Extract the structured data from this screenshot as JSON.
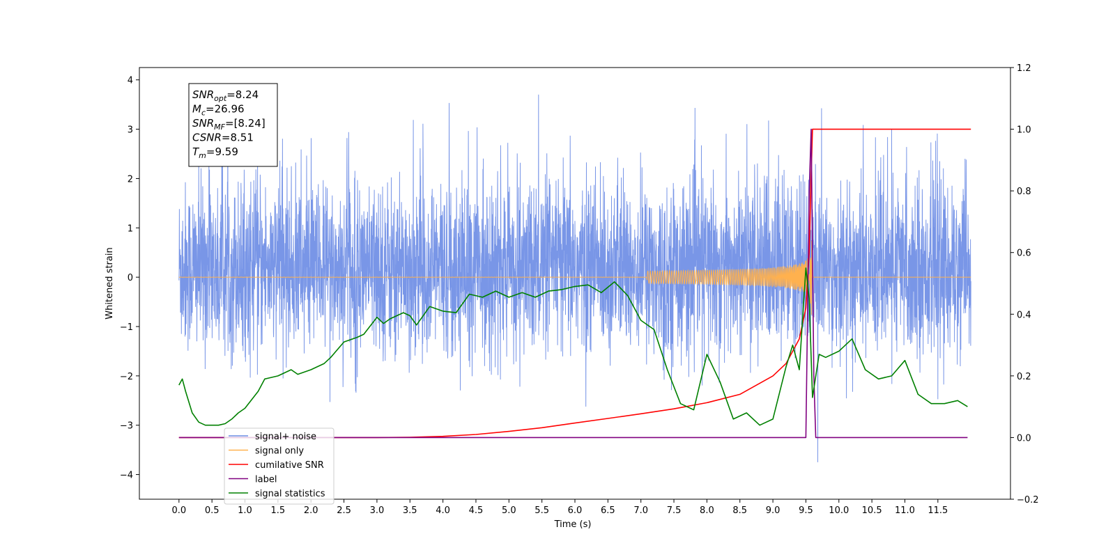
{
  "chart_data": {
    "type": "line",
    "xlabel": "Time (s)",
    "ylabel": "Whitened strain",
    "xlim": [
      -0.6,
      12.6
    ],
    "ylim": [
      -4.5,
      4.25
    ],
    "y2lim": [
      -0.2,
      1.2
    ],
    "xticks": [
      0.0,
      0.5,
      1.0,
      1.5,
      2.0,
      2.5,
      3.0,
      3.5,
      4.0,
      4.5,
      5.0,
      5.5,
      6.0,
      6.5,
      7.0,
      7.5,
      8.0,
      8.5,
      9.0,
      9.5,
      10.0,
      10.5,
      11.0,
      11.5
    ],
    "xtick_labels": [
      "0.0",
      "0.5",
      "1.0",
      "1.5",
      "2.0",
      "2.5",
      "3.0",
      "3.5",
      "4.0",
      "4.5",
      "5.0",
      "5.5",
      "6.0",
      "6.5",
      "7.0",
      "7.5",
      "8.0",
      "8.5",
      "9.0",
      "9.5",
      "10.0",
      "10.5",
      "11.0",
      "11.5"
    ],
    "yticks": [
      -4,
      -3,
      -2,
      -1,
      0,
      1,
      2,
      3,
      4
    ],
    "ytick_labels": [
      "−4",
      "−3",
      "−2",
      "−1",
      "0",
      "1",
      "2",
      "3",
      "4"
    ],
    "y2ticks": [
      -0.2,
      0.0,
      0.2,
      0.4,
      0.6,
      0.8,
      1.0,
      1.2
    ],
    "y2tick_labels": [
      "−0.2",
      "0.0",
      "0.2",
      "0.4",
      "0.6",
      "0.8",
      "1.0",
      "1.2"
    ],
    "grid": false,
    "legend_position": "lower-left",
    "info_box": [
      {
        "base": "SNR",
        "sub": "opt",
        "value": "=8.24"
      },
      {
        "base": "M",
        "sub": "c",
        "value": "=26.96"
      },
      {
        "base": "SNR",
        "sub": "MF",
        "value": "=[8.24]"
      },
      {
        "base": "CSNR",
        "sub": "",
        "value": "=8.51"
      },
      {
        "base": "T",
        "sub": "m",
        "value": "=9.59"
      }
    ],
    "series": [
      {
        "name": "signal+ noise",
        "color": "#6a8be4",
        "axis": "left",
        "note": "noise band mostly within approx -1.5..+2.2, spikes up to 3.85 and down to -4.1",
        "x_range": [
          0.0,
          12.0
        ]
      },
      {
        "name": "signal only",
        "color": "#ffb14e",
        "axis": "left",
        "note": "chirp waveform, flat at 0 then growing oscillation near merger",
        "x_range": [
          0.0,
          12.0
        ],
        "merger_time": 9.59,
        "peak_amplitude": 0.9
      },
      {
        "name": "cumilative SNR",
        "color": "#ff0000",
        "axis": "right",
        "x": [
          0.0,
          3.0,
          3.5,
          4.0,
          4.5,
          5.0,
          5.5,
          6.0,
          6.5,
          7.0,
          7.5,
          8.0,
          8.5,
          9.0,
          9.2,
          9.4,
          9.5,
          9.55,
          9.58,
          9.6,
          12.0
        ],
        "y": [
          0.0,
          0.0,
          0.001,
          0.004,
          0.01,
          0.02,
          0.032,
          0.047,
          0.062,
          0.077,
          0.093,
          0.113,
          0.14,
          0.2,
          0.24,
          0.32,
          0.42,
          0.6,
          0.85,
          1.0,
          1.0
        ]
      },
      {
        "name": "label",
        "color": "#800080",
        "axis": "right",
        "x": [
          0.0,
          9.5,
          9.55,
          9.58,
          9.62,
          9.65,
          11.95
        ],
        "y": [
          0.0,
          0.0,
          0.8,
          1.0,
          0.2,
          0.0,
          0.0
        ]
      },
      {
        "name": "signal statistics",
        "color": "#008000",
        "axis": "right",
        "x": [
          0.0,
          0.05,
          0.1,
          0.2,
          0.3,
          0.4,
          0.5,
          0.6,
          0.7,
          0.8,
          0.9,
          1.0,
          1.2,
          1.3,
          1.5,
          1.7,
          1.8,
          2.0,
          2.2,
          2.3,
          2.5,
          2.7,
          2.8,
          3.0,
          3.1,
          3.2,
          3.4,
          3.5,
          3.6,
          3.8,
          4.0,
          4.2,
          4.4,
          4.6,
          4.8,
          5.0,
          5.2,
          5.4,
          5.6,
          5.8,
          6.0,
          6.2,
          6.4,
          6.6,
          6.8,
          7.0,
          7.2,
          7.4,
          7.6,
          7.8,
          8.0,
          8.2,
          8.4,
          8.6,
          8.8,
          9.0,
          9.2,
          9.3,
          9.4,
          9.5,
          9.55,
          9.6,
          9.7,
          9.8,
          10.0,
          10.2,
          10.4,
          10.6,
          10.8,
          11.0,
          11.2,
          11.4,
          11.6,
          11.8,
          11.95
        ],
        "y": [
          0.17,
          0.19,
          0.15,
          0.08,
          0.05,
          0.04,
          0.04,
          0.04,
          0.045,
          0.06,
          0.08,
          0.095,
          0.15,
          0.19,
          0.2,
          0.22,
          0.205,
          0.22,
          0.24,
          0.26,
          0.31,
          0.325,
          0.335,
          0.39,
          0.37,
          0.385,
          0.405,
          0.395,
          0.365,
          0.425,
          0.41,
          0.405,
          0.465,
          0.455,
          0.475,
          0.455,
          0.47,
          0.455,
          0.475,
          0.48,
          0.49,
          0.495,
          0.47,
          0.505,
          0.46,
          0.38,
          0.35,
          0.22,
          0.11,
          0.09,
          0.27,
          0.18,
          0.06,
          0.08,
          0.04,
          0.06,
          0.23,
          0.3,
          0.22,
          0.55,
          0.45,
          0.13,
          0.27,
          0.26,
          0.28,
          0.32,
          0.22,
          0.19,
          0.2,
          0.25,
          0.14,
          0.11,
          0.11,
          0.12,
          0.1
        ]
      }
    ]
  }
}
